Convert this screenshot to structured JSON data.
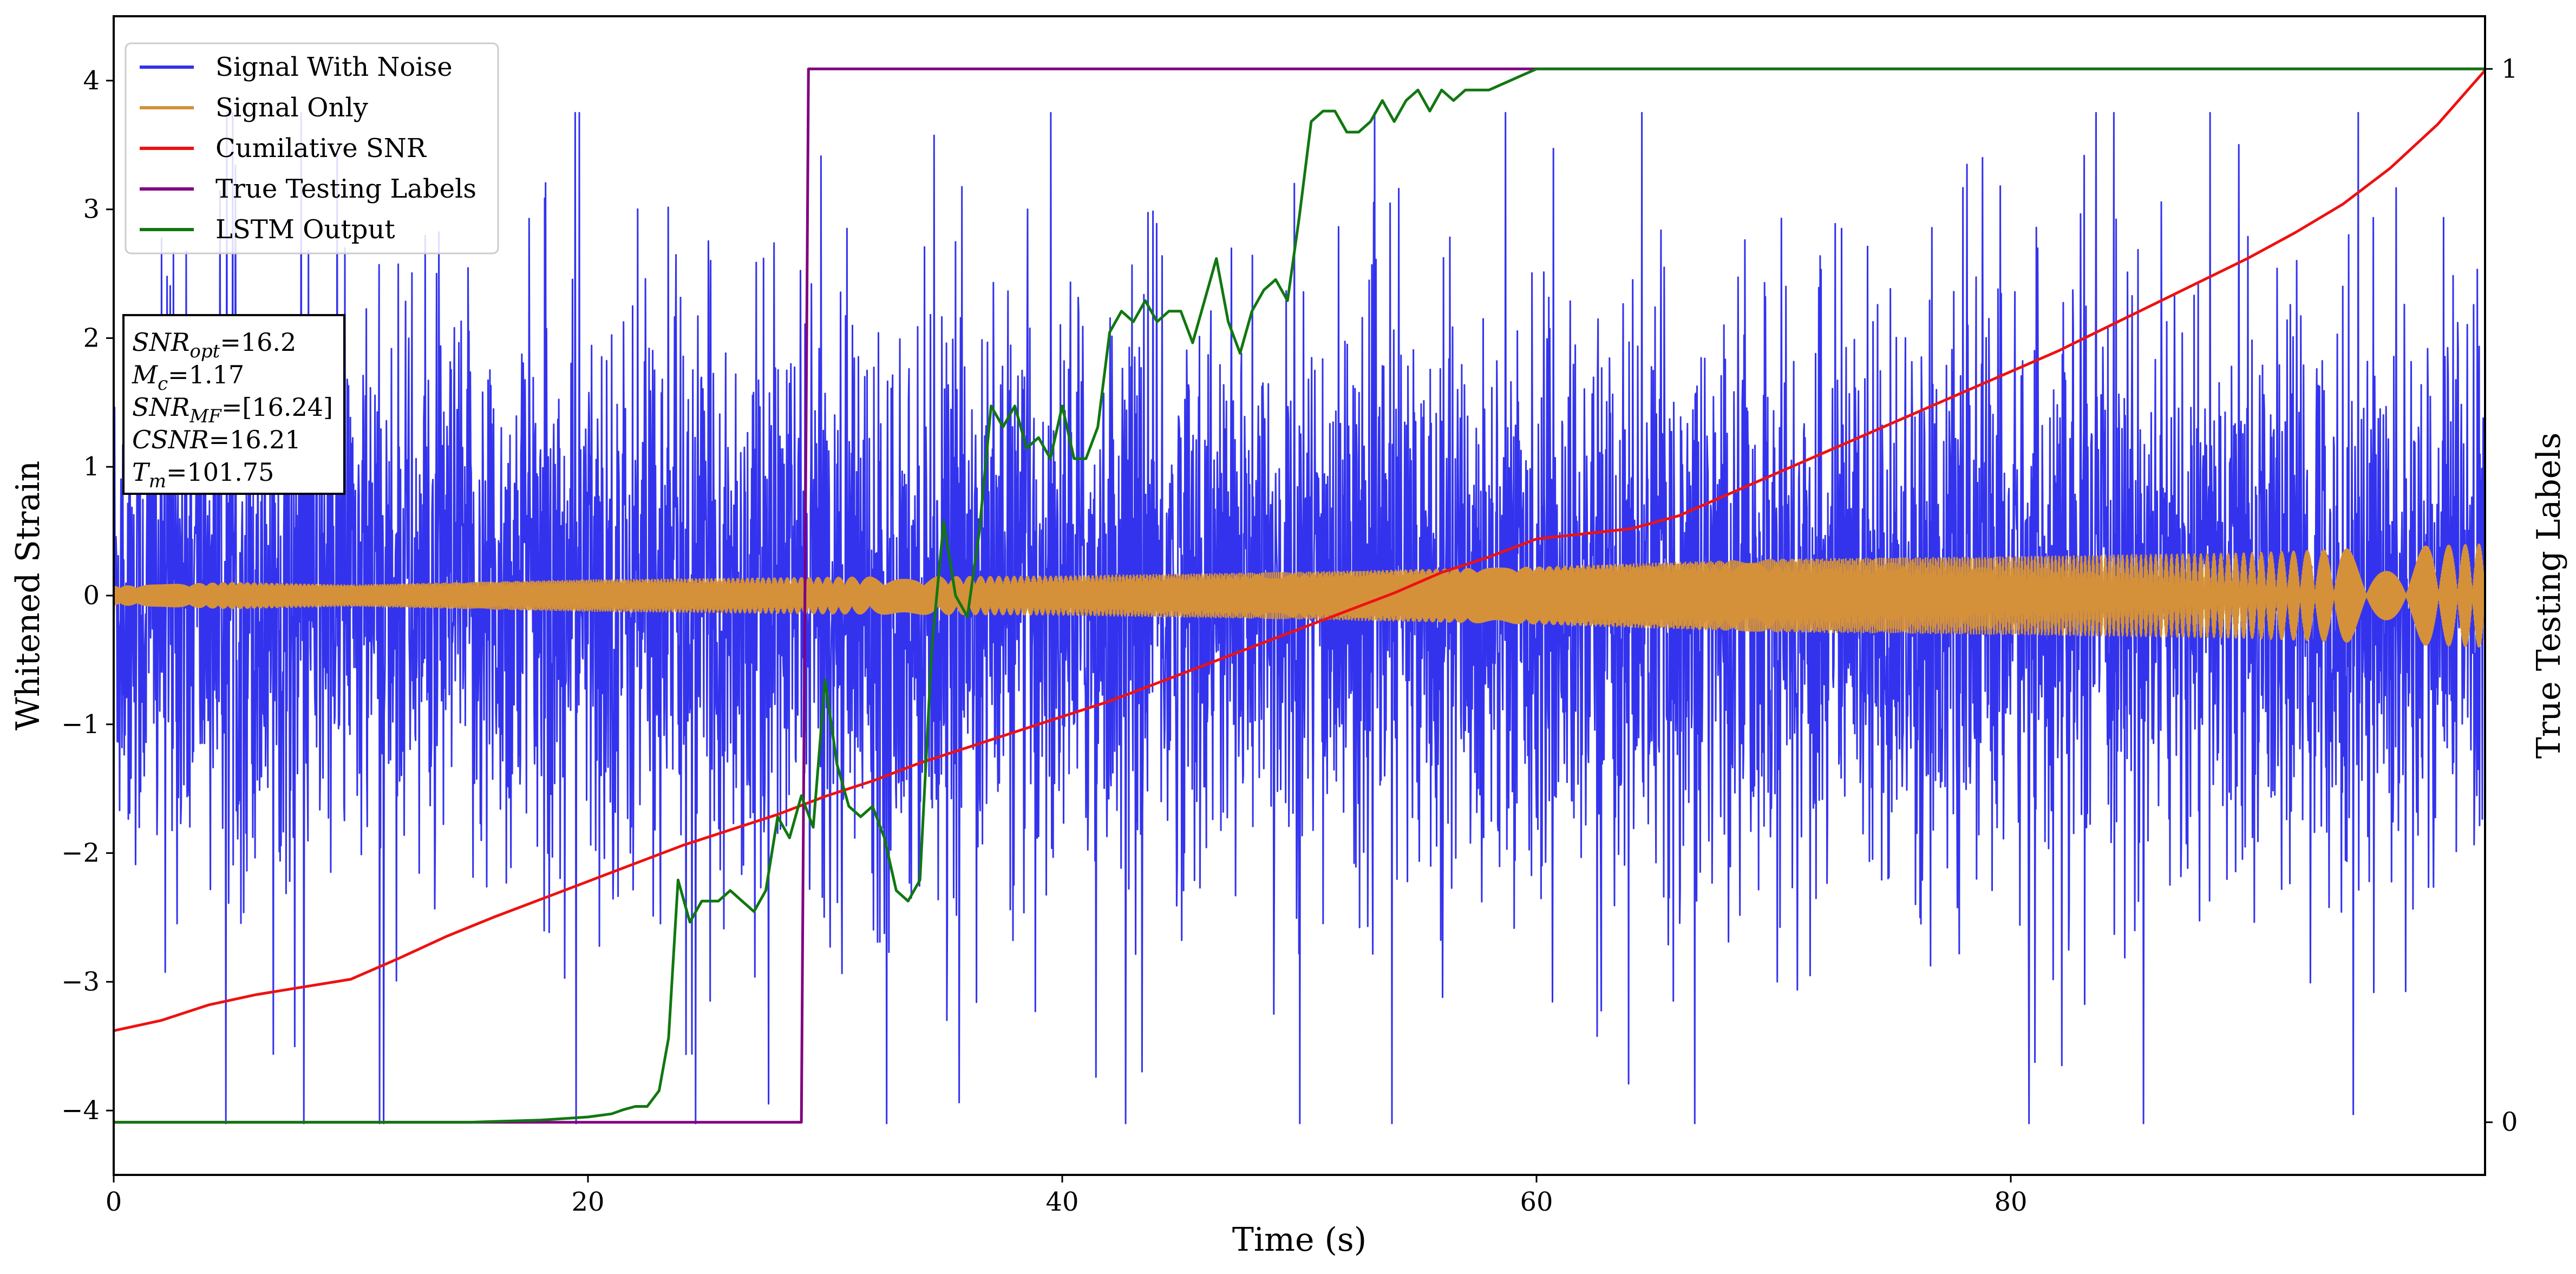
{
  "chart_data": {
    "type": "line",
    "xlabel": "Time (s)",
    "ylabel": "Whitened Strain",
    "y2label": "True Testing Labels",
    "xlim": [
      0,
      100
    ],
    "ylim": [
      -4.5,
      4.5
    ],
    "y2lim": [
      -0.05,
      1.05
    ],
    "xticks": [
      0,
      20,
      40,
      60,
      80
    ],
    "yticks": [
      -4,
      -3,
      -2,
      -1,
      0,
      1,
      2,
      3,
      4
    ],
    "y2ticks": [
      0,
      1
    ],
    "legend_position": "upper-left",
    "grid": false,
    "series": [
      {
        "name": "Signal With Noise",
        "color": "#3333ee",
        "axis": "left",
        "description": "noisy whitened strain, roughly within -4 to 4",
        "stats": {
          "min": -4.1,
          "max": 3.75,
          "typical_abs": 1.4
        }
      },
      {
        "name": "Signal Only",
        "color": "#d4913a",
        "axis": "left",
        "description": "chirp waveform, amplitude growing from ~0.08 to ~0.4",
        "envelope": {
          "x": [
            0,
            5,
            10,
            20,
            30,
            40,
            50,
            55,
            60,
            65,
            70,
            80,
            90,
            100
          ],
          "amp": [
            0.07,
            0.1,
            0.08,
            0.12,
            0.14,
            0.15,
            0.18,
            0.2,
            0.22,
            0.25,
            0.28,
            0.3,
            0.33,
            0.4
          ]
        }
      },
      {
        "name": "Cumilative SNR",
        "color": "#ee1111",
        "axis": "left",
        "x": [
          0,
          2,
          4,
          6,
          8,
          10,
          12,
          14,
          16,
          18,
          20,
          22,
          24,
          26,
          28,
          30,
          32,
          34,
          36,
          38,
          40,
          42,
          44,
          46,
          48,
          50,
          52,
          54,
          56,
          58,
          60,
          62,
          64,
          66,
          68,
          70,
          72,
          74,
          76,
          78,
          80,
          82,
          84,
          86,
          88,
          90,
          92,
          94,
          96,
          98,
          100
        ],
        "y": [
          -3.38,
          -3.3,
          -3.18,
          -3.1,
          -3.04,
          -2.98,
          -2.82,
          -2.65,
          -2.5,
          -2.36,
          -2.22,
          -2.08,
          -1.94,
          -1.82,
          -1.7,
          -1.56,
          -1.44,
          -1.3,
          -1.18,
          -1.06,
          -0.94,
          -0.82,
          -0.68,
          -0.54,
          -0.4,
          -0.26,
          -0.12,
          0.02,
          0.18,
          0.3,
          0.44,
          0.48,
          0.52,
          0.62,
          0.78,
          0.94,
          1.1,
          1.26,
          1.42,
          1.58,
          1.74,
          1.9,
          2.08,
          2.26,
          2.44,
          2.62,
          2.82,
          3.04,
          3.32,
          3.66,
          4.08
        ]
      },
      {
        "name": "True Testing Labels",
        "color": "#800080",
        "axis": "right",
        "x": [
          0,
          29,
          29.3,
          100
        ],
        "y": [
          0,
          0,
          1,
          1
        ]
      },
      {
        "name": "LSTM Output",
        "color": "#117711",
        "axis": "right",
        "x": [
          0,
          15,
          18,
          20,
          21,
          21.5,
          22,
          22.5,
          23,
          23.4,
          23.8,
          24.3,
          24.8,
          25.5,
          26,
          26.5,
          27,
          27.5,
          28,
          28.5,
          29,
          29.5,
          30,
          30.5,
          31,
          31.5,
          32,
          32.5,
          33,
          33.5,
          34,
          34.5,
          35,
          35.5,
          36,
          36.5,
          37,
          37.5,
          38,
          38.5,
          39,
          39.5,
          40,
          40.5,
          41,
          41.5,
          42,
          42.5,
          43,
          43.5,
          44,
          44.5,
          45,
          45.5,
          46,
          46.5,
          47,
          47.5,
          48,
          48.5,
          49,
          49.5,
          50,
          50.5,
          51,
          51.5,
          52,
          52.5,
          53,
          53.5,
          54,
          54.5,
          55,
          55.5,
          56,
          56.5,
          57,
          58,
          59,
          60,
          62,
          64,
          66,
          70,
          100
        ],
        "y": [
          0,
          0,
          0.002,
          0.005,
          0.008,
          0.012,
          0.015,
          0.015,
          0.03,
          0.08,
          0.23,
          0.19,
          0.21,
          0.21,
          0.22,
          0.21,
          0.2,
          0.22,
          0.29,
          0.27,
          0.31,
          0.28,
          0.42,
          0.34,
          0.3,
          0.29,
          0.3,
          0.27,
          0.22,
          0.21,
          0.23,
          0.45,
          0.57,
          0.5,
          0.48,
          0.56,
          0.68,
          0.66,
          0.68,
          0.64,
          0.65,
          0.63,
          0.68,
          0.63,
          0.63,
          0.66,
          0.75,
          0.77,
          0.76,
          0.78,
          0.76,
          0.77,
          0.77,
          0.74,
          0.78,
          0.82,
          0.76,
          0.73,
          0.77,
          0.79,
          0.8,
          0.78,
          0.86,
          0.95,
          0.96,
          0.96,
          0.94,
          0.94,
          0.95,
          0.97,
          0.95,
          0.97,
          0.98,
          0.96,
          0.98,
          0.97,
          0.98,
          0.98,
          0.99,
          1.0,
          1.0,
          1.0,
          1.0,
          1.0,
          1.0
        ]
      }
    ],
    "annotation_lines": [
      {
        "prefix": "SNR",
        "sub": "opt",
        "value": "=16.2"
      },
      {
        "prefix": "M",
        "sub": "c",
        "value": "=1.17"
      },
      {
        "prefix": "SNR",
        "sub": "MF",
        "value": "=[16.24]"
      },
      {
        "prefix": "CSNR",
        "sub": "",
        "value": "=16.21"
      },
      {
        "prefix": "T",
        "sub": "m",
        "value": "=101.75"
      }
    ]
  }
}
